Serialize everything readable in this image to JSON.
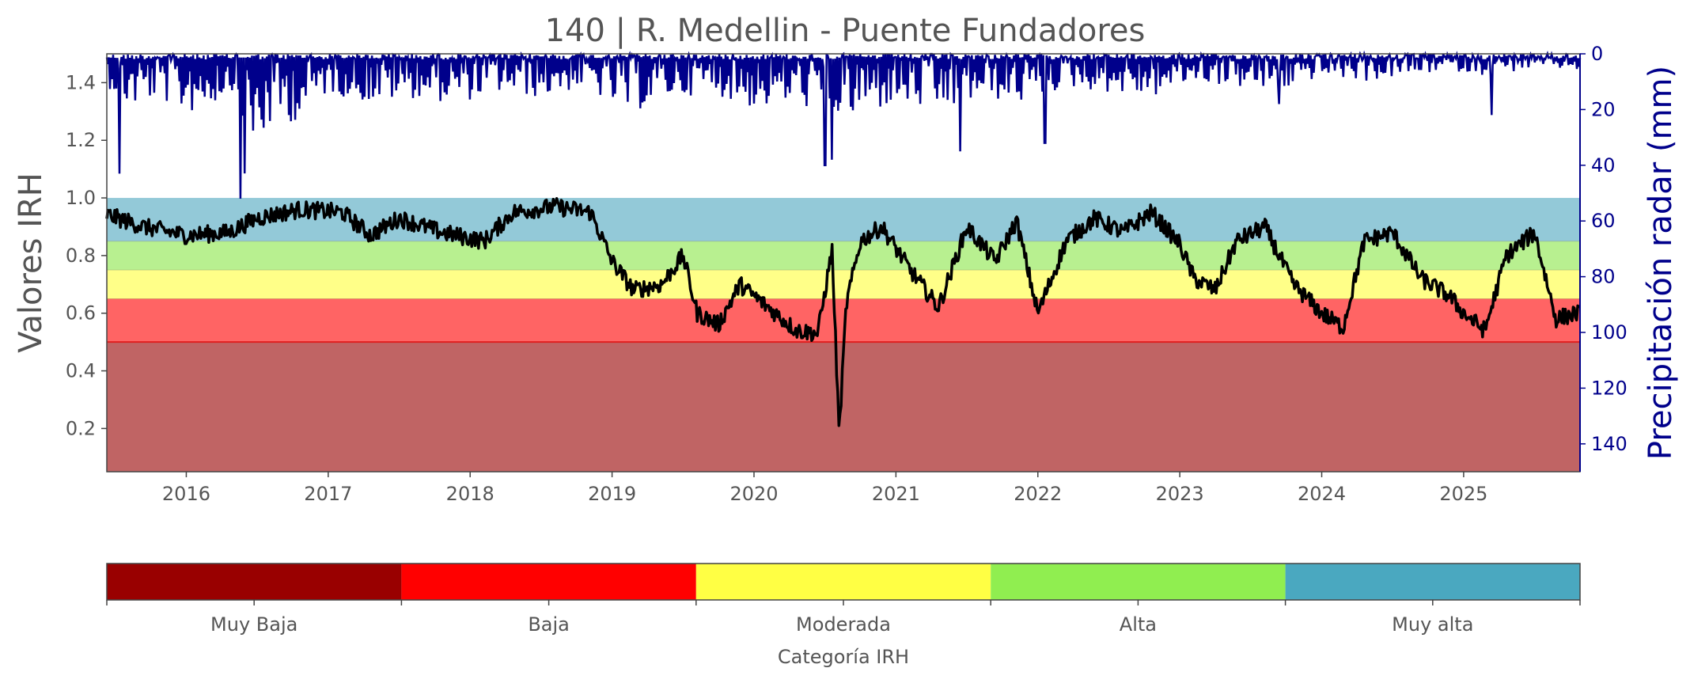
{
  "chart_data": {
    "type": "line",
    "title": "140 | R. Medellin - Puente Fundadores",
    "ylabel": "Valores IRH",
    "y2label": "Precipitación radar (mm)",
    "xlim": [
      2015.44,
      2025.82
    ],
    "ylim": [
      0.05,
      1.5
    ],
    "y2lim": [
      150,
      0
    ],
    "x_ticks": [
      2016,
      2017,
      2018,
      2019,
      2020,
      2021,
      2022,
      2023,
      2024,
      2025
    ],
    "x_tick_labels": [
      "2016",
      "2017",
      "2018",
      "2019",
      "2020",
      "2021",
      "2022",
      "2023",
      "2024",
      "2025"
    ],
    "y_ticks": [
      0.2,
      0.4,
      0.6,
      0.8,
      1.0,
      1.2,
      1.4
    ],
    "y_tick_labels": [
      "0.2",
      "0.4",
      "0.6",
      "0.8",
      "1.0",
      "1.2",
      "1.4"
    ],
    "y2_ticks": [
      0,
      20,
      40,
      60,
      80,
      100,
      120,
      140
    ],
    "y2_tick_labels": [
      "0",
      "20",
      "40",
      "60",
      "80",
      "100",
      "120",
      "140"
    ],
    "bands": [
      {
        "from": 0.05,
        "to": 0.5,
        "color": "#c06464"
      },
      {
        "from": 0.5,
        "to": 0.65,
        "color": "#ff6464"
      },
      {
        "from": 0.65,
        "to": 0.75,
        "color": "#ffff88"
      },
      {
        "from": 0.75,
        "to": 0.85,
        "color": "#b8f090"
      },
      {
        "from": 0.85,
        "to": 1.0,
        "color": "#93c9d8"
      }
    ],
    "threshold_line": {
      "y": 0.5,
      "color": "#e02020"
    },
    "series": [
      {
        "axis": "left",
        "color": "#000000",
        "x": [
          2015.45,
          2015.7,
          2016.0,
          2016.3,
          2016.5,
          2016.8,
          2017.1,
          2017.3,
          2017.5,
          2017.8,
          2018.1,
          2018.3,
          2018.6,
          2018.85,
          2019.0,
          2019.15,
          2019.35,
          2019.5,
          2019.6,
          2019.75,
          2019.9,
          2020.1,
          2020.3,
          2020.45,
          2020.55,
          2020.6,
          2020.65,
          2020.75,
          2020.9,
          2021.1,
          2021.3,
          2021.5,
          2021.7,
          2021.85,
          2022.0,
          2022.2,
          2022.4,
          2022.6,
          2022.8,
          2023.0,
          2023.1,
          2023.25,
          2023.4,
          2023.6,
          2023.8,
          2024.0,
          2024.15,
          2024.3,
          2024.5,
          2024.7,
          2024.9,
          2025.0,
          2025.15,
          2025.3,
          2025.5,
          2025.65,
          2025.8
        ],
        "y": [
          0.94,
          0.9,
          0.87,
          0.88,
          0.93,
          0.96,
          0.95,
          0.87,
          0.93,
          0.88,
          0.85,
          0.95,
          0.97,
          0.95,
          0.78,
          0.68,
          0.7,
          0.8,
          0.6,
          0.56,
          0.7,
          0.62,
          0.54,
          0.53,
          0.82,
          0.18,
          0.63,
          0.85,
          0.9,
          0.75,
          0.62,
          0.9,
          0.78,
          0.92,
          0.6,
          0.85,
          0.93,
          0.88,
          0.95,
          0.84,
          0.72,
          0.68,
          0.85,
          0.9,
          0.7,
          0.6,
          0.55,
          0.85,
          0.88,
          0.72,
          0.66,
          0.6,
          0.54,
          0.8,
          0.88,
          0.58,
          0.6
        ],
        "noise": 0.03
      },
      {
        "axis": "right",
        "color": "#00008b",
        "x": [
          2015.45,
          2015.6,
          2015.8,
          2016.0,
          2016.2,
          2016.35,
          2016.4,
          2016.6,
          2016.8,
          2017.0,
          2017.3,
          2017.6,
          2017.9,
          2018.2,
          2018.5,
          2018.8,
          2019.1,
          2019.4,
          2019.7,
          2020.0,
          2020.3,
          2020.5,
          2020.7,
          2021.0,
          2021.3,
          2021.6,
          2021.9,
          2022.2,
          2022.5,
          2022.8,
          2023.1,
          2023.4,
          2023.7,
          2024.0,
          2024.3,
          2024.6,
          2024.9,
          2025.2,
          2025.5,
          2025.8
        ],
        "y": [
          12,
          20,
          16,
          22,
          18,
          12,
          48,
          26,
          24,
          14,
          18,
          16,
          18,
          14,
          16,
          12,
          22,
          16,
          14,
          20,
          18,
          22,
          24,
          18,
          22,
          16,
          18,
          12,
          14,
          16,
          10,
          12,
          14,
          8,
          10,
          8,
          6,
          8,
          5,
          6
        ],
        "spikes": [
          [
            2015.53,
            43
          ],
          [
            2016.38,
            52
          ],
          [
            2020.5,
            40
          ],
          [
            2020.55,
            38
          ],
          [
            2021.45,
            35
          ],
          [
            2022.05,
            32
          ],
          [
            2023.7,
            18
          ],
          [
            2025.2,
            22
          ]
        ]
      }
    ],
    "colorbar": {
      "title": "Categoría IRH",
      "categories": [
        "Muy Baja",
        "Baja",
        "Moderada",
        "Alta",
        "Muy alta"
      ],
      "colors": [
        "#990000",
        "#ff0000",
        "#ffff44",
        "#90ee50",
        "#4aa8c0"
      ]
    }
  }
}
